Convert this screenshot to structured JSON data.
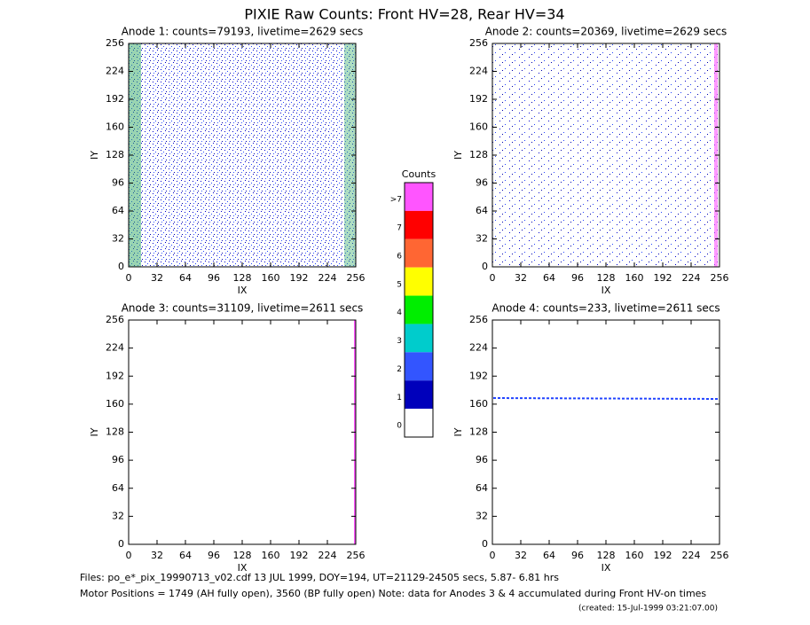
{
  "title": "PIXIE Raw Counts:  Front HV=28, Rear HV=34",
  "chart_data": [
    {
      "type": "heatmap",
      "title": "Anode 1: counts=79193, livetime=2629 secs",
      "xlabel": "IX",
      "ylabel": "IY",
      "xlim": [
        0,
        256
      ],
      "ylim": [
        0,
        256
      ],
      "xticks": [
        0,
        32,
        64,
        96,
        128,
        160,
        192,
        224,
        256
      ],
      "yticks": [
        0,
        32,
        64,
        96,
        128,
        160,
        192,
        224,
        256
      ]
    },
    {
      "type": "heatmap",
      "title": "Anode 2: counts=20369, livetime=2629 secs",
      "xlabel": "IX",
      "ylabel": "IY",
      "xlim": [
        0,
        256
      ],
      "ylim": [
        0,
        256
      ],
      "xticks": [
        0,
        32,
        64,
        96,
        128,
        160,
        192,
        224,
        256
      ],
      "yticks": [
        0,
        32,
        64,
        96,
        128,
        160,
        192,
        224,
        256
      ]
    },
    {
      "type": "heatmap",
      "title": "Anode 3: counts=31109, livetime=2611 secs",
      "xlabel": "IX",
      "ylabel": "IY",
      "xlim": [
        0,
        256
      ],
      "ylim": [
        0,
        256
      ],
      "xticks": [
        0,
        32,
        64,
        96,
        128,
        160,
        192,
        224,
        256
      ],
      "yticks": [
        0,
        32,
        64,
        96,
        128,
        160,
        192,
        224,
        256
      ]
    },
    {
      "type": "heatmap",
      "title": "Anode 4: counts=233, livetime=2611 secs",
      "xlabel": "IX",
      "ylabel": "IY",
      "xlim": [
        0,
        256
      ],
      "ylim": [
        0,
        256
      ],
      "xticks": [
        0,
        32,
        64,
        96,
        128,
        160,
        192,
        224,
        256
      ],
      "yticks": [
        0,
        32,
        64,
        96,
        128,
        160,
        192,
        224,
        256
      ]
    }
  ],
  "colorbar": {
    "title": "Counts",
    "labels": [
      ">7",
      "7",
      "6",
      "5",
      "4",
      "3",
      "2",
      "1",
      "0"
    ],
    "colors": [
      "#ff55ff",
      "#ff0000",
      "#ff6633",
      "#ffff00",
      "#00ee00",
      "#00cccc",
      "#3355ff",
      "#0000bb",
      "#ffffff"
    ]
  },
  "footer": [
    "Files: po_e*_pix_19990713_v02.cdf    13 JUL 1999, DOY=194, UT=21129-24505 secs,  5.87- 6.81 hrs",
    "Motor Positions = 1749 (AH fully open), 3560 (BP fully open)    Note: data for Anodes 3 & 4 accumulated during Front HV-on times",
    "(created: 15-Jul-1999 03:21:07.00)"
  ]
}
